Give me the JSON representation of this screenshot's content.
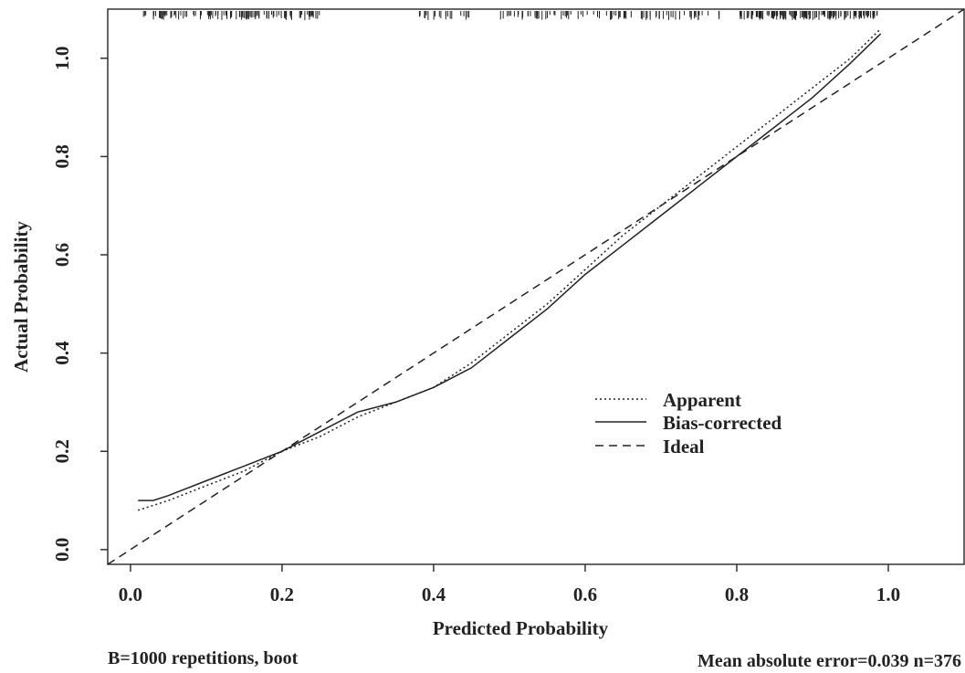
{
  "chart_data": {
    "type": "line",
    "xlabel": "Predicted Probability",
    "ylabel": "Actual Probability",
    "xlim": [
      -0.03,
      1.1
    ],
    "ylim": [
      -0.03,
      1.1
    ],
    "x_ticks": [
      "0.0",
      "0.2",
      "0.4",
      "0.6",
      "0.8",
      "1.0"
    ],
    "y_ticks": [
      "0.0",
      "0.2",
      "0.4",
      "0.6",
      "0.8",
      "1.0"
    ],
    "grid": false,
    "legend_position": "center-right",
    "series": [
      {
        "name": "Apparent",
        "style": "dotted",
        "x": [
          0.01,
          0.05,
          0.1,
          0.15,
          0.2,
          0.25,
          0.3,
          0.35,
          0.4,
          0.45,
          0.5,
          0.55,
          0.6,
          0.65,
          0.7,
          0.75,
          0.8,
          0.85,
          0.9,
          0.95,
          0.99
        ],
        "y": [
          0.08,
          0.1,
          0.13,
          0.16,
          0.2,
          0.23,
          0.27,
          0.3,
          0.33,
          0.38,
          0.44,
          0.5,
          0.57,
          0.64,
          0.7,
          0.76,
          0.82,
          0.88,
          0.94,
          1.0,
          1.06
        ]
      },
      {
        "name": "Bias-corrected",
        "style": "solid",
        "x": [
          0.01,
          0.03,
          0.05,
          0.1,
          0.15,
          0.2,
          0.25,
          0.3,
          0.35,
          0.4,
          0.45,
          0.5,
          0.55,
          0.6,
          0.65,
          0.7,
          0.75,
          0.8,
          0.85,
          0.9,
          0.95,
          0.99
        ],
        "y": [
          0.1,
          0.1,
          0.11,
          0.14,
          0.17,
          0.2,
          0.24,
          0.28,
          0.3,
          0.33,
          0.37,
          0.43,
          0.49,
          0.56,
          0.62,
          0.68,
          0.74,
          0.8,
          0.86,
          0.92,
          0.99,
          1.05
        ]
      },
      {
        "name": "Ideal",
        "style": "dashed",
        "x": [
          -0.03,
          1.1
        ],
        "y": [
          -0.03,
          1.1
        ]
      }
    ],
    "rug_note": "Distribution of predicted probabilities shown as tick marks along top",
    "annotations": {
      "left": "B=1000 repetitions, boot",
      "right": "Mean absolute error=0.039 n=376"
    }
  }
}
